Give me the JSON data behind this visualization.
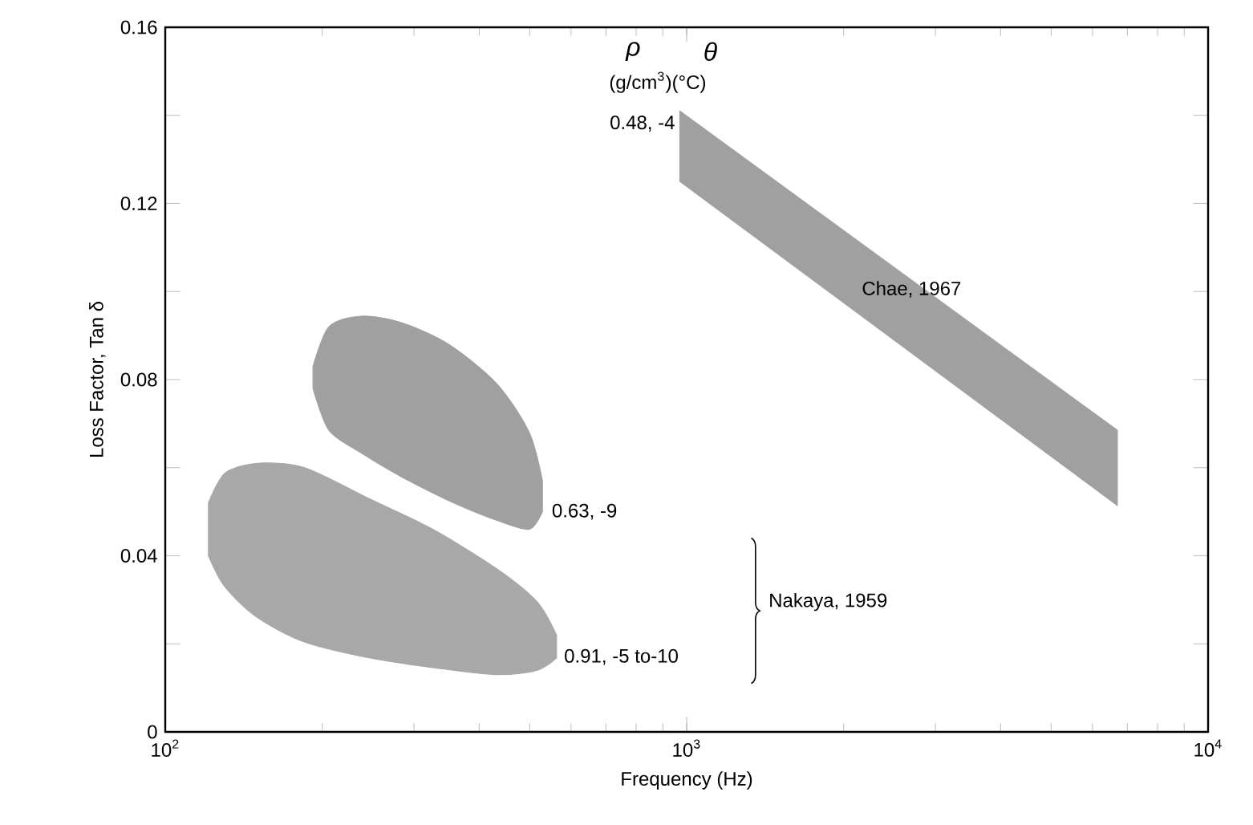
{
  "chart_data": {
    "type": "line",
    "xlabel": "Frequency (Hz)",
    "ylabel": "Loss Factor, Tan δ",
    "log": "x",
    "xlim": [
      100,
      10000
    ],
    "ylim": [
      0,
      0.16
    ],
    "xticks": [
      {
        "value": 100,
        "label": "10$^{2}$"
      },
      {
        "value": 1000,
        "label": "10$^{3}$"
      },
      {
        "value": 10000,
        "label": "10$^{4}$"
      }
    ],
    "yticks": [
      0,
      {
        "value": 0.02,
        "label": null
      },
      0.04,
      {
        "value": 0.06,
        "label": null
      },
      0.08,
      {
        "value": 0.1,
        "label": null
      },
      0.12,
      {
        "value": 0.14,
        "label": null
      },
      0.16
    ],
    "series": [
      {
        "color": "#a0a0a0",
        "x": [
          970,
          6700
        ],
        "values": [
          null,
          null
        ],
        "lower": [
          0.125,
          0.0514
        ],
        "upper": [
          0.141,
          0.0685
        ]
      },
      {
        "color": "#a0a0a0",
        "x": [
          192,
          206,
          237,
          283,
          350,
          433,
          499,
          529
        ],
        "values": [
          null,
          null,
          null,
          null,
          null,
          null,
          null,
          null
        ],
        "lower": [
          0.078,
          0.0685,
          0.0634,
          0.058,
          0.0525,
          0.048,
          0.046,
          0.05
        ],
        "upper": [
          0.083,
          0.092,
          0.0944,
          0.093,
          0.088,
          0.079,
          0.068,
          0.057
        ]
      },
      {
        "color": "#a8a8a8",
        "x": [
          121,
          130,
          150,
          185,
          246,
          326,
          433,
          517,
          563
        ],
        "values": [
          null,
          null,
          null,
          null,
          null,
          null,
          null,
          null,
          null
        ],
        "lower": [
          0.04,
          0.033,
          0.026,
          0.0204,
          0.0168,
          0.0146,
          0.013,
          0.014,
          0.0168
        ],
        "upper": [
          0.052,
          0.0587,
          0.061,
          0.06,
          0.053,
          0.046,
          0.037,
          0.0295,
          0.022
        ]
      }
    ],
    "annotations": [
      "ρ",
      "θ",
      "(g/cm$^{3}$)(°C)",
      {
        "text": "0.48, -4",
        "x": 970,
        "y": 0.141
      },
      "Chae, 1967",
      {
        "text": "0.63, -9",
        "x": 540,
        "y": 0.05
      },
      {
        "text": "0.91, -5 to-10",
        "x": 570,
        "y": 0.017
      },
      "Nakaya, 1959"
    ]
  }
}
